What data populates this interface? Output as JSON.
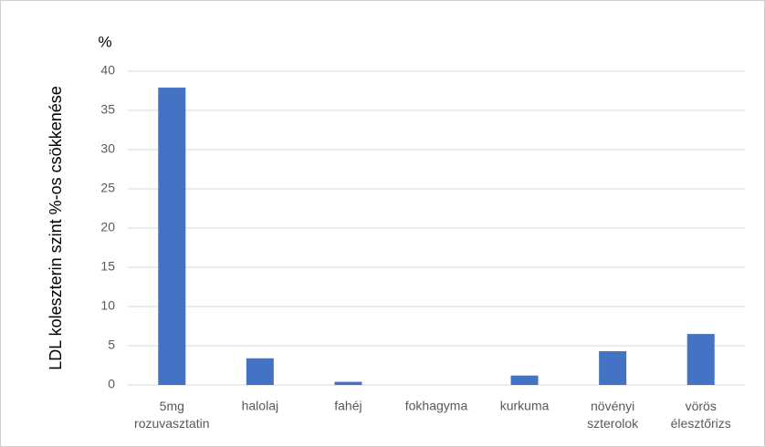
{
  "chart_data": {
    "type": "bar",
    "y_axis_label": "LDL koleszterin szint %-os csökkenése",
    "y_unit": "%",
    "categories": [
      "5mg rozuvasztatin",
      "halolaj",
      "fahéj",
      "fokhagyma",
      "kurkuma",
      "növényi szterolok",
      "vörös élesztőrizs"
    ],
    "values": [
      37.9,
      3.4,
      0.4,
      0,
      1.2,
      4.3,
      6.5
    ],
    "color": "#4472c4",
    "ylim": [
      0,
      40
    ],
    "yticks": [
      0,
      5,
      10,
      15,
      20,
      25,
      30,
      35,
      40
    ],
    "grid": true
  }
}
